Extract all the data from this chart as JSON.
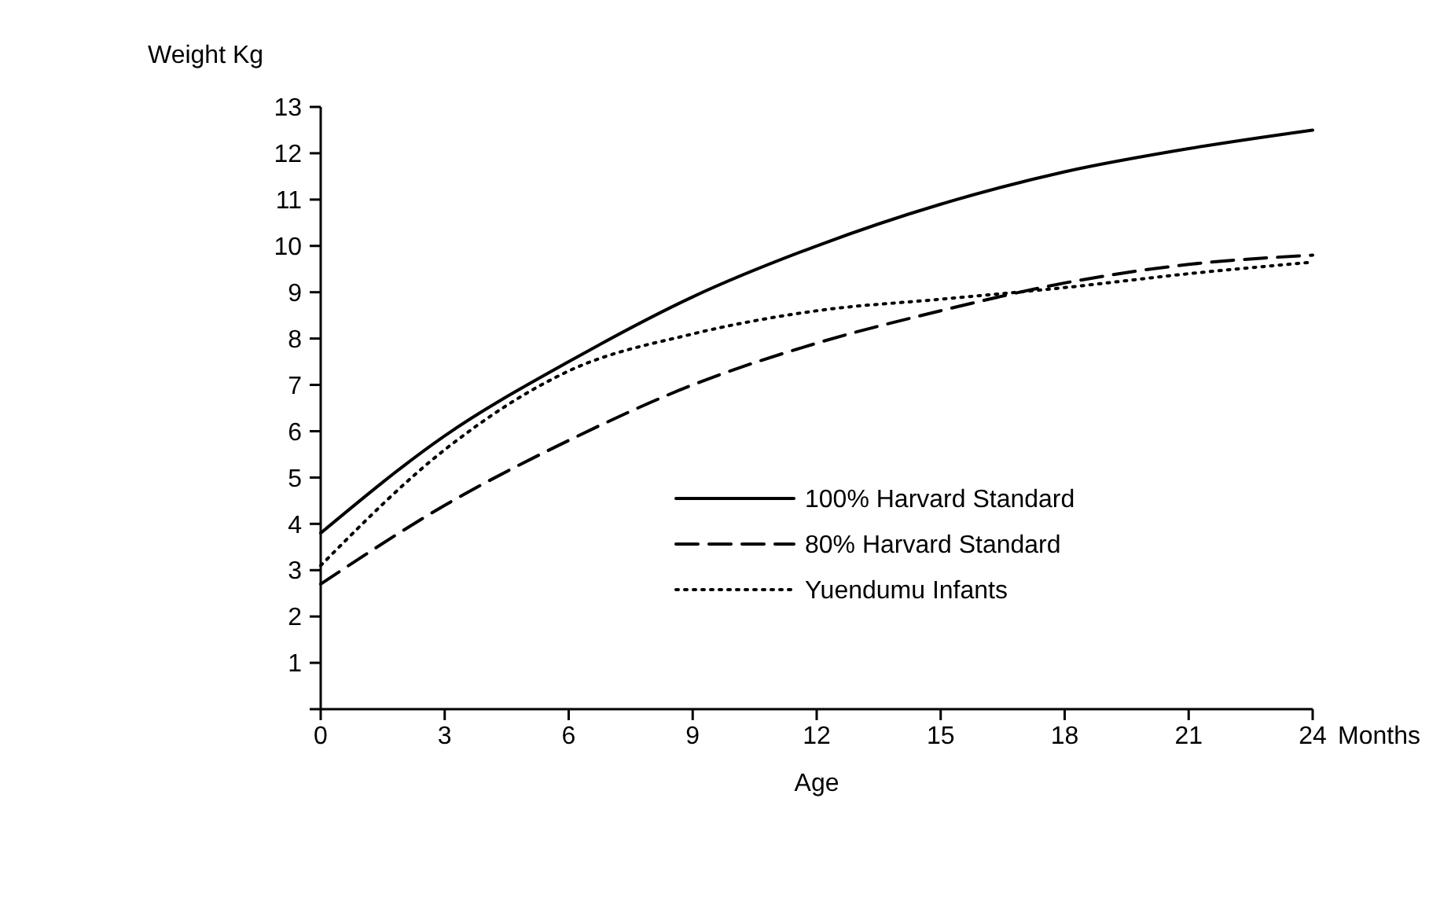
{
  "chart_data": {
    "type": "line",
    "xlabel": "Age",
    "ylabel": "Weight Kg",
    "annotations": [
      "Months"
    ],
    "x": [
      0,
      3,
      6,
      9,
      12,
      15,
      18,
      21,
      24
    ],
    "xlim": [
      0,
      24
    ],
    "xticks": [
      0,
      3,
      6,
      9,
      12,
      15,
      18,
      21,
      24
    ],
    "ylim": [
      0,
      13
    ],
    "yticks": [
      {
        "value": 0,
        "label": null
      },
      1,
      2,
      3,
      4,
      5,
      6,
      7,
      8,
      9,
      10,
      11,
      12,
      13
    ],
    "grid": false,
    "legend": "right",
    "series": [
      {
        "name": "100% Harvard Standard",
        "color": "#000000",
        "line_style": "solid",
        "values": [
          3.8,
          5.9,
          7.5,
          8.9,
          10.0,
          10.9,
          11.6,
          12.1,
          12.5
        ]
      },
      {
        "name": "80% Harvard Standard",
        "color": "#000000",
        "line_style": "dashed",
        "values": [
          2.7,
          4.4,
          5.8,
          7.0,
          7.9,
          8.6,
          9.2,
          9.6,
          9.8
        ]
      },
      {
        "name": "Yuendumu Infants",
        "color": "#000000",
        "line_style": "dotted",
        "values": [
          3.1,
          5.6,
          7.3,
          8.1,
          8.6,
          8.85,
          9.1,
          9.4,
          9.65
        ]
      }
    ]
  }
}
